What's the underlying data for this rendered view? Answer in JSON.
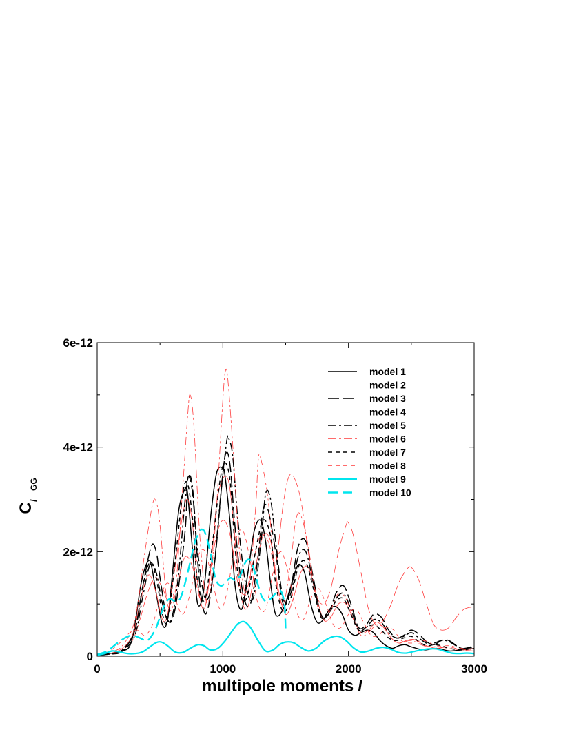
{
  "chart_data": {
    "type": "line",
    "title": "",
    "xlabel": "multipole moments",
    "xlabel_symbol": "l",
    "ylabel": "C",
    "ylabel_superscript": "GG",
    "ylabel_subscript": "l",
    "xlim": [
      0,
      3000
    ],
    "ylim": [
      0,
      6e-12
    ],
    "xticks": [
      0,
      1000,
      2000,
      3000
    ],
    "xtick_labels": [
      "0",
      "1000",
      "2000",
      "3000"
    ],
    "yticks": [
      0,
      2e-12,
      4e-12,
      6e-12
    ],
    "ytick_labels": [
      "0",
      "2e-12",
      "4e-12",
      "6e-12"
    ],
    "grid": false,
    "legend_position": "top-right",
    "series": [
      {
        "name": "model 1",
        "color": "#000000",
        "dash": "solid",
        "x": [
          0,
          100,
          200,
          260,
          300,
          350,
          400,
          430,
          470,
          520,
          560,
          600,
          650,
          700,
          720,
          760,
          800,
          850,
          900,
          950,
          1000,
          1020,
          1060,
          1100,
          1150,
          1200,
          1250,
          1300,
          1340,
          1380,
          1420,
          1480,
          1550,
          1600,
          1650,
          1700,
          1750,
          1800,
          1850,
          1900,
          1950,
          2000,
          2050,
          2100,
          2150,
          2200,
          2250,
          2300,
          2350,
          2400,
          2450,
          2500,
          2600,
          2700,
          2800,
          2900,
          3000
        ],
        "y": [
          2e-14,
          5e-14,
          1e-13,
          2e-13,
          6e-13,
          1.4e-12,
          1.8e-12,
          1.75e-12,
          1.2e-12,
          6e-13,
          7e-13,
          1.6e-12,
          2.8e-12,
          3.2e-12,
          3.1e-12,
          2e-12,
          1e-12,
          1.3e-12,
          2.6e-12,
          3.5e-12,
          3.6e-12,
          3.4e-12,
          2.5e-12,
          1.3e-12,
          9e-13,
          1.6e-12,
          2.4e-12,
          2.6e-12,
          2.2e-12,
          1.4e-12,
          8e-13,
          9e-13,
          1.4e-12,
          1.75e-12,
          1.6e-12,
          1e-12,
          6.5e-13,
          7e-13,
          9e-13,
          9.5e-13,
          8e-13,
          5e-13,
          4e-13,
          4.5e-13,
          5e-13,
          4.5e-13,
          3e-13,
          2e-13,
          1.5e-13,
          2e-13,
          2.2e-13,
          1.8e-13,
          1.2e-13,
          1.5e-13,
          1e-13,
          1.2e-13,
          1.5e-13
        ]
      },
      {
        "name": "model 2",
        "color": "#ff3b3b",
        "dash": "solid",
        "width": 0.8,
        "x": [
          0,
          100,
          200,
          280,
          330,
          380,
          420,
          470,
          520,
          560,
          620,
          680,
          720,
          760,
          800,
          850,
          900,
          950,
          1000,
          1050,
          1100,
          1150,
          1200,
          1260,
          1320,
          1380,
          1440,
          1500,
          1560,
          1620,
          1680,
          1740,
          1800,
          1860,
          1920,
          1980,
          2040,
          2100,
          2160,
          2220,
          2280,
          2340,
          2400,
          2460,
          2520,
          2600,
          2700,
          2800,
          2900,
          3000
        ],
        "y": [
          2e-14,
          5e-14,
          1.5e-13,
          4e-13,
          9e-13,
          1.4e-12,
          1.55e-12,
          1.2e-12,
          7e-13,
          8e-13,
          1.7e-12,
          2.7e-12,
          3e-12,
          2.5e-12,
          1.4e-12,
          9e-13,
          1.6e-12,
          2.9e-12,
          3.4e-12,
          3.3e-12,
          2.2e-12,
          1.1e-12,
          9.5e-13,
          1.7e-12,
          2.3e-12,
          2.2e-12,
          1.3e-12,
          8e-13,
          1.1e-12,
          1.6e-12,
          1.7e-12,
          1.2e-12,
          7e-13,
          7.5e-13,
          1e-12,
          1e-12,
          7e-13,
          4.5e-13,
          5e-13,
          6.5e-13,
          5.5e-13,
          3.5e-13,
          2.5e-13,
          3e-13,
          3.2e-13,
          2.2e-13,
          1.5e-13,
          1.8e-13,
          1.2e-13,
          1.5e-13
        ]
      },
      {
        "name": "model 3",
        "color": "#000000",
        "dash": "16,6",
        "x": [
          0,
          100,
          200,
          300,
          360,
          430,
          470,
          500,
          560,
          620,
          700,
          720,
          760,
          800,
          840,
          880,
          940,
          1000,
          1030,
          1060,
          1100,
          1160,
          1220,
          1280,
          1320,
          1360,
          1420,
          1480,
          1540,
          1600,
          1660,
          1720,
          1780,
          1840,
          1900,
          1960,
          2020,
          2080,
          2140,
          2200,
          2260,
          2320,
          2380,
          2440,
          2500,
          2560,
          2620,
          2680,
          2740,
          2800,
          2900,
          3000
        ],
        "y": [
          2e-14,
          4e-14,
          1e-13,
          5e-13,
          1.3e-12,
          2.1e-12,
          2e-12,
          1.5e-12,
          7e-13,
          9e-13,
          2.4e-12,
          3.4e-12,
          3.1e-12,
          1.8e-12,
          9.5e-13,
          9e-13,
          1.9e-12,
          3.5e-12,
          3.9e-12,
          3.6e-12,
          2.4e-12,
          1.2e-12,
          1e-12,
          1.9e-12,
          2.8e-12,
          2.8e-12,
          2e-12,
          1e-12,
          1.3e-12,
          2.1e-12,
          2.2e-12,
          1.5e-12,
          8e-13,
          8e-13,
          1.2e-12,
          1.35e-12,
          1e-12,
          5.5e-13,
          6e-13,
          8e-13,
          7.5e-13,
          5e-13,
          3.5e-13,
          4e-13,
          5e-13,
          4.2e-13,
          2.8e-13,
          2.2e-13,
          3e-13,
          3e-13,
          1.5e-13,
          2e-13
        ]
      },
      {
        "name": "model 4",
        "color": "#ff3b3b",
        "dash": "16,6",
        "width": 0.8,
        "x": [
          0,
          100,
          200,
          280,
          340,
          400,
          460,
          520,
          580,
          640,
          700,
          760,
          820,
          880,
          940,
          1000,
          1060,
          1120,
          1180,
          1240,
          1300,
          1360,
          1420,
          1480,
          1520,
          1560,
          1620,
          1680,
          1740,
          1800,
          1860,
          1920,
          1980,
          2000,
          2040,
          2100,
          2160,
          2220,
          2280,
          2340,
          2400,
          2460,
          2500,
          2560,
          2620,
          2680,
          2740,
          2800,
          2860,
          2920,
          3000
        ],
        "y": [
          2e-14,
          5e-14,
          1.2e-13,
          3e-13,
          7e-13,
          1.2e-12,
          1.5e-12,
          1.3e-12,
          1e-12,
          1.4e-12,
          1.9e-12,
          1.7e-12,
          1.1e-12,
          1.3e-12,
          2.2e-12,
          2.6e-12,
          2.3e-12,
          1.4e-12,
          1.2e-12,
          1.8e-12,
          2.3e-12,
          2.2e-12,
          1.8e-12,
          2.9e-12,
          3.4e-12,
          3.45e-12,
          3e-12,
          2e-12,
          1.2e-12,
          1e-12,
          1.3e-12,
          2e-12,
          2.5e-12,
          2.55e-12,
          2.3e-12,
          1.6e-12,
          9e-13,
          6e-13,
          7e-13,
          1e-12,
          1.4e-12,
          1.65e-12,
          1.7e-12,
          1.45e-12,
          1e-12,
          6e-13,
          5e-13,
          5.5e-13,
          7.5e-13,
          9e-13,
          9.5e-13
        ]
      },
      {
        "name": "model 5",
        "color": "#000000",
        "dash": "12,4,3,4",
        "x": [
          0,
          100,
          200,
          300,
          360,
          420,
          470,
          520,
          580,
          640,
          700,
          730,
          760,
          800,
          860,
          920,
          980,
          1030,
          1050,
          1080,
          1120,
          1180,
          1240,
          1300,
          1340,
          1380,
          1420,
          1480,
          1540,
          1600,
          1660,
          1720,
          1780,
          1840,
          1900,
          1960,
          2020,
          2080,
          2140,
          2200,
          2260,
          2320,
          2380,
          2440,
          2500,
          2560,
          2620,
          2680,
          2740,
          2800,
          2900,
          3000
        ],
        "y": [
          2e-14,
          4e-14,
          1e-13,
          4e-13,
          1.1e-12,
          1.75e-12,
          1.6e-12,
          1e-12,
          6.5e-13,
          1.4e-12,
          3e-12,
          3.45e-12,
          3.2e-12,
          2e-12,
          1.1e-12,
          1.5e-12,
          3e-12,
          4.1e-12,
          4.15e-12,
          3.8e-12,
          2.6e-12,
          1.4e-12,
          1.1e-12,
          2.1e-12,
          3.1e-12,
          3e-12,
          2.2e-12,
          1.1e-12,
          1.2e-12,
          1.9e-12,
          2e-12,
          1.4e-12,
          8e-13,
          8.5e-13,
          1.1e-12,
          1.2e-12,
          9e-13,
          5e-13,
          5.5e-13,
          7e-13,
          6.5e-13,
          4.5e-13,
          3.5e-13,
          3.8e-13,
          4.5e-13,
          3.5e-13,
          2.5e-13,
          2.5e-13,
          3e-13,
          2.8e-13,
          1.5e-13,
          1.8e-13
        ]
      },
      {
        "name": "model 6",
        "color": "#ff3b3b",
        "dash": "12,4,3,4",
        "width": 0.8,
        "x": [
          0,
          100,
          200,
          300,
          380,
          440,
          470,
          500,
          560,
          620,
          680,
          720,
          740,
          770,
          820,
          880,
          940,
          1000,
          1020,
          1040,
          1080,
          1140,
          1200,
          1260,
          1280,
          1300,
          1360,
          1420,
          1480,
          1540,
          1580,
          1620,
          1680,
          1740,
          1800,
          1860,
          1920,
          1980,
          2040,
          2100,
          2160,
          2220,
          2280,
          2340,
          2400,
          2500,
          2600,
          2700,
          2800,
          2900,
          3000
        ],
        "y": [
          3e-14,
          8e-14,
          2e-13,
          7e-13,
          2e-12,
          2.9e-12,
          2.95e-12,
          2.5e-12,
          1e-12,
          1.2e-12,
          3.2e-12,
          4.6e-12,
          5e-12,
          4.4e-12,
          2.2e-12,
          1e-12,
          2.5e-12,
          4.9e-12,
          5.45e-12,
          5.3e-12,
          4e-12,
          1.8e-12,
          1.2e-12,
          2.8e-12,
          3.7e-12,
          3.8e-12,
          3e-12,
          1.5e-12,
          1e-12,
          1.8e-12,
          2.6e-12,
          2.7e-12,
          2.1e-12,
          1.1e-12,
          7e-13,
          9e-13,
          1.2e-12,
          1.1e-12,
          7e-13,
          4e-13,
          4.5e-13,
          6e-13,
          5.5e-13,
          3.5e-13,
          2.5e-13,
          3e-13,
          2e-13,
          1.8e-13,
          1.5e-13,
          1.2e-13,
          1e-13
        ]
      },
      {
        "name": "model 7",
        "color": "#000000",
        "dash": "6,5",
        "x": [
          0,
          100,
          200,
          300,
          360,
          420,
          470,
          520,
          560,
          620,
          680,
          720,
          760,
          800,
          860,
          920,
          980,
          1020,
          1060,
          1100,
          1150,
          1200,
          1260,
          1320,
          1380,
          1420,
          1480,
          1540,
          1600,
          1660,
          1720,
          1780,
          1840,
          1900,
          1960,
          2020,
          2080,
          2140,
          2200,
          2260,
          2320,
          2380,
          2440,
          2500,
          2560,
          2620,
          2680,
          2740,
          2800,
          2900,
          3000
        ],
        "y": [
          2e-14,
          5e-14,
          1.2e-13,
          5e-13,
          1.3e-12,
          1.8e-12,
          1.5e-12,
          8e-13,
          7e-13,
          1.8e-12,
          3.1e-12,
          3.3e-12,
          2.6e-12,
          1.4e-12,
          1.1e-12,
          2.2e-12,
          3.4e-12,
          3.7e-12,
          3.3e-12,
          2e-12,
          1.1e-12,
          1.2e-12,
          2e-12,
          2.6e-12,
          2.3e-12,
          1.4e-12,
          8.5e-13,
          1.1e-12,
          1.7e-12,
          1.8e-12,
          1.3e-12,
          7.5e-13,
          8e-13,
          1.05e-12,
          1.1e-12,
          8e-13,
          5e-13,
          5.5e-13,
          6e-13,
          5e-13,
          3.5e-13,
          3e-13,
          3.5e-13,
          3.8e-13,
          2.8e-13,
          2e-13,
          2.2e-13,
          2e-13,
          1.5e-13,
          1.2e-13,
          1.5e-13
        ]
      },
      {
        "name": "model 8",
        "color": "#ff3b3b",
        "dash": "6,5",
        "width": 0.8,
        "x": [
          0,
          100,
          200,
          260,
          320,
          380,
          440,
          500,
          560,
          620,
          680,
          740,
          800,
          860,
          920,
          980,
          1040,
          1100,
          1160,
          1220,
          1280,
          1340,
          1400,
          1460,
          1520,
          1580,
          1640,
          1700,
          1760,
          1820,
          1880,
          1940,
          2000,
          2060,
          2120,
          2180,
          2240,
          2300,
          2360,
          2420,
          2500,
          2600,
          2700,
          2800,
          2900,
          3000
        ],
        "y": [
          3e-14,
          1e-13,
          3e-13,
          4.5e-13,
          5e-13,
          4e-13,
          6e-13,
          1.1e-12,
          1.4e-12,
          1.1e-12,
          8e-13,
          1.2e-12,
          1.9e-12,
          2e-12,
          1.4e-12,
          9e-13,
          1.3e-12,
          2.2e-12,
          2.4e-12,
          1.8e-12,
          1e-12,
          9e-13,
          1.6e-12,
          2e-12,
          1.6e-12,
          9e-13,
          7e-13,
          1.1e-12,
          1.3e-12,
          1e-12,
          6e-13,
          5.5e-13,
          8e-13,
          9e-13,
          6.5e-13,
          4e-13,
          4e-13,
          5.5e-13,
          5e-13,
          3e-13,
          2.5e-13,
          3e-13,
          2e-13,
          2e-13,
          1.5e-13,
          1.2e-13
        ]
      },
      {
        "name": "model 9",
        "color": "#00e5ee",
        "dash": "solid",
        "width": 2.2,
        "x": [
          0,
          60,
          120,
          180,
          240,
          300,
          360,
          420,
          470,
          510,
          560,
          620,
          680,
          740,
          800,
          850,
          900,
          960,
          1020,
          1080,
          1120,
          1170,
          1220,
          1280,
          1340,
          1400,
          1450,
          1500,
          1560,
          1620,
          1680,
          1740,
          1800,
          1860,
          1920,
          1980,
          2040,
          2100,
          2160,
          2220,
          2280,
          2340,
          2400,
          2460,
          2520,
          2580,
          2640,
          2700,
          2760,
          2820,
          2880,
          2940,
          3000
        ],
        "y": [
          2e-14,
          5e-14,
          1e-13,
          8e-14,
          5e-14,
          5e-14,
          8e-14,
          1.8e-13,
          2.6e-13,
          2.7e-13,
          2e-13,
          8e-14,
          7e-14,
          1.5e-13,
          2.2e-13,
          2e-13,
          1.2e-13,
          1.5e-13,
          3e-13,
          5e-13,
          6.2e-13,
          6.6e-13,
          5.5e-13,
          3e-13,
          1e-13,
          1.2e-13,
          2.2e-13,
          2.7e-13,
          2.6e-13,
          1.7e-13,
          1e-13,
          1.5e-13,
          2.8e-13,
          3.6e-13,
          3.8e-13,
          3e-13,
          1.6e-13,
          8e-14,
          1e-13,
          1.5e-13,
          1.7e-13,
          1.3e-13,
          7e-14,
          6e-14,
          9e-14,
          1.2e-13,
          1.4e-13,
          1.4e-13,
          1e-13,
          6e-14,
          5e-14,
          6e-14,
          5e-14
        ]
      },
      {
        "name": "model 10",
        "color": "#00e5ee",
        "dash": "14,7",
        "width": 2.4,
        "x": [
          0,
          80,
          160,
          220,
          280,
          340,
          400,
          460,
          500,
          540,
          580,
          620,
          660,
          700,
          740,
          780,
          820,
          840,
          860,
          900,
          940,
          980,
          1020,
          1060,
          1100,
          1140,
          1170,
          1200,
          1230,
          1260,
          1300,
          1340,
          1380,
          1420,
          1460,
          1490,
          1500
        ],
        "y": [
          3e-14,
          1e-13,
          2.5e-13,
          3.5e-13,
          4e-13,
          3.5e-13,
          3e-13,
          5e-13,
          7.5e-13,
          1e-12,
          1.1e-12,
          1.05e-12,
          1.1e-12,
          1.4e-12,
          1.8e-12,
          2.2e-12,
          2.4e-12,
          2.42e-12,
          2.35e-12,
          2e-12,
          1.5e-12,
          1.35e-12,
          1.4e-12,
          1.5e-12,
          1.45e-12,
          1.55e-12,
          1.75e-12,
          1.85e-12,
          1.8e-12,
          1.55e-12,
          1.2e-12,
          1.05e-12,
          1.1e-12,
          1.2e-12,
          1.25e-12,
          1e-12,
          5e-13
        ]
      }
    ]
  }
}
